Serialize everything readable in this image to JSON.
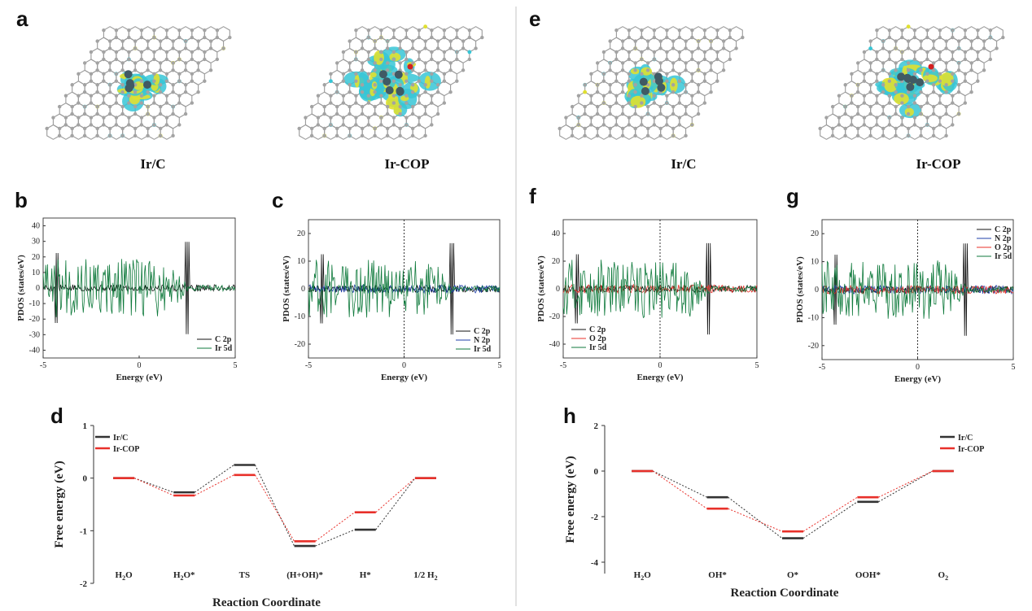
{
  "panel_labels": {
    "a": "a",
    "b": "b",
    "c": "c",
    "d": "d",
    "e": "e",
    "f": "f",
    "g": "g",
    "h": "h"
  },
  "structures": {
    "a_left": "Ir/C",
    "a_right": "Ir-COP",
    "e_left": "Ir/C",
    "e_right": "Ir-COP"
  },
  "colors": {
    "c2p": "#111111",
    "n2p": "#1f3fa8",
    "o2p": "#e8302a",
    "ir5d": "#0f7a3c",
    "irc": "#333333",
    "ircop": "#e8302a",
    "cyan": "#37c6d6",
    "yellow": "#e0e030",
    "carbon": "#8c8c8c",
    "ir": "#405a64"
  },
  "chart_data": [
    {
      "id": "b",
      "type": "line",
      "xlabel": "Energy (eV)",
      "ylabel": "PDOS (states/eV)",
      "xlim": [
        -5,
        5
      ],
      "ylim": [
        -45,
        45
      ],
      "xticks": [
        "-5",
        "0",
        "5"
      ],
      "yticks": [
        "40",
        "30",
        "20",
        "10",
        "0",
        "-10",
        "-20",
        "-30",
        "-40"
      ],
      "fermi_line": false,
      "series": [
        {
          "name": "C 2p",
          "key": "c2p"
        },
        {
          "name": "Ir 5d",
          "key": "ir5d"
        }
      ]
    },
    {
      "id": "c",
      "type": "line",
      "xlabel": "Energy (eV)",
      "ylabel": "PDOS (states/eV)",
      "xlim": [
        -5,
        5
      ],
      "ylim": [
        -25,
        25
      ],
      "xticks": [
        "-5",
        "0",
        "5"
      ],
      "yticks": [
        "20",
        "10",
        "0",
        "-10",
        "-20"
      ],
      "fermi_line": true,
      "series": [
        {
          "name": "C 2p",
          "key": "c2p"
        },
        {
          "name": "N 2p",
          "key": "n2p"
        },
        {
          "name": "Ir 5d",
          "key": "ir5d"
        }
      ]
    },
    {
      "id": "f",
      "type": "line",
      "xlabel": "Energy (eV)",
      "ylabel": "PDOS (states/eV)",
      "xlim": [
        -5,
        5
      ],
      "ylim": [
        -50,
        50
      ],
      "xticks": [
        "-5",
        "0",
        "5"
      ],
      "yticks": [
        "40",
        "20",
        "0",
        "-20",
        "-40"
      ],
      "fermi_line": true,
      "series": [
        {
          "name": "C 2p",
          "key": "c2p"
        },
        {
          "name": "O 2p",
          "key": "o2p"
        },
        {
          "name": "Ir 5d",
          "key": "ir5d"
        }
      ]
    },
    {
      "id": "g",
      "type": "line",
      "xlabel": "Energy (eV)",
      "ylabel": "PDOS (states/eV)",
      "xlim": [
        -5,
        5
      ],
      "ylim": [
        -25,
        25
      ],
      "xticks": [
        "-5",
        "0",
        "5"
      ],
      "yticks": [
        "20",
        "10",
        "0",
        "-10",
        "-20"
      ],
      "fermi_line": true,
      "series": [
        {
          "name": "C 2p",
          "key": "c2p"
        },
        {
          "name": "N 2p",
          "key": "n2p"
        },
        {
          "name": "O 2p",
          "key": "o2p"
        },
        {
          "name": "Ir 5d",
          "key": "ir5d"
        }
      ]
    },
    {
      "id": "d",
      "type": "line",
      "xlabel": "Reaction Coordinate",
      "ylabel": "Free energy (eV)",
      "ylim": [
        -2,
        1
      ],
      "yticks": [
        "1",
        "0",
        "-1",
        "-2"
      ],
      "categories": [
        "H2O",
        "H2O*",
        "TS",
        "(H+OH)*",
        "H*",
        "1/2 H2"
      ],
      "series": [
        {
          "name": "Ir/C",
          "key": "irc",
          "values": [
            0,
            -0.27,
            0.25,
            -1.29,
            -0.98,
            0
          ]
        },
        {
          "name": "Ir-COP",
          "key": "ircop",
          "values": [
            0,
            -0.33,
            0.06,
            -1.2,
            -0.65,
            0
          ]
        }
      ]
    },
    {
      "id": "h",
      "type": "line",
      "xlabel": "Reaction Coordinate",
      "ylabel": "Free energy (eV)",
      "ylim": [
        -4.5,
        2
      ],
      "yticks": [
        "2",
        "0",
        "-2",
        "-4"
      ],
      "categories": [
        "H2O",
        "OH*",
        "O*",
        "OOH*",
        "O2"
      ],
      "series": [
        {
          "name": "Ir/C",
          "key": "irc",
          "values": [
            0,
            -1.15,
            -2.95,
            -1.35,
            0
          ]
        },
        {
          "name": "Ir-COP",
          "key": "ircop",
          "values": [
            0,
            -1.65,
            -2.65,
            -1.15,
            0
          ]
        }
      ]
    }
  ]
}
